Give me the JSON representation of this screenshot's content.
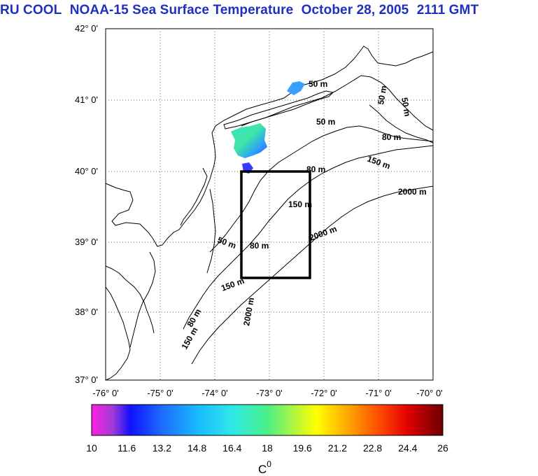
{
  "title": {
    "source": "RU COOL",
    "product": "NOAA-15 Sea Surface Temperature",
    "date": "October 28, 2005",
    "time": "2111 GMT"
  },
  "map": {
    "lat_labels": [
      "42° 0'",
      "41° 0'",
      "40° 0'",
      "39° 0'",
      "38° 0'",
      "37° 0'"
    ],
    "lon_labels": [
      "-76° 0'",
      "-75° 0'",
      "-74° 0'",
      "-73° 0'",
      "-72° 0'",
      "-71° 0'",
      "-70° 0'"
    ],
    "lat_range": [
      37,
      42
    ],
    "lon_range": [
      -76,
      -70
    ],
    "contour_labels": {
      "c50a": "50 m",
      "c50b": "50 m",
      "c50c": "50 m",
      "c50d": "50 m",
      "c50e": "50 m",
      "c80a": "80 m",
      "c80b": "80 m",
      "c80c": "80 m",
      "c80d": "80 m",
      "c150a": "150 m",
      "c150b": "150 m",
      "c150c": "150 m",
      "c150d": "150 m",
      "c2000a": "2000 m",
      "c2000b": "2000 m",
      "c2000c": "2000 m"
    },
    "study_box": {
      "lat_min": 38.5,
      "lat_max": 40.0,
      "lon_min": -73.4,
      "lon_max": -72.2
    }
  },
  "colorbar": {
    "ticks": [
      "10",
      "11.6",
      "13.2",
      "14.8",
      "16.4",
      "18",
      "19.6",
      "21.2",
      "22.8",
      "24.4",
      "26"
    ],
    "range": [
      10,
      26
    ],
    "unit": "C",
    "unit_sup": "0"
  },
  "colors": {
    "title": "#1f2fbf",
    "grid": "#555555",
    "sst_patch_low": "#1e90ff",
    "sst_patch_high": "#40e0a0"
  }
}
